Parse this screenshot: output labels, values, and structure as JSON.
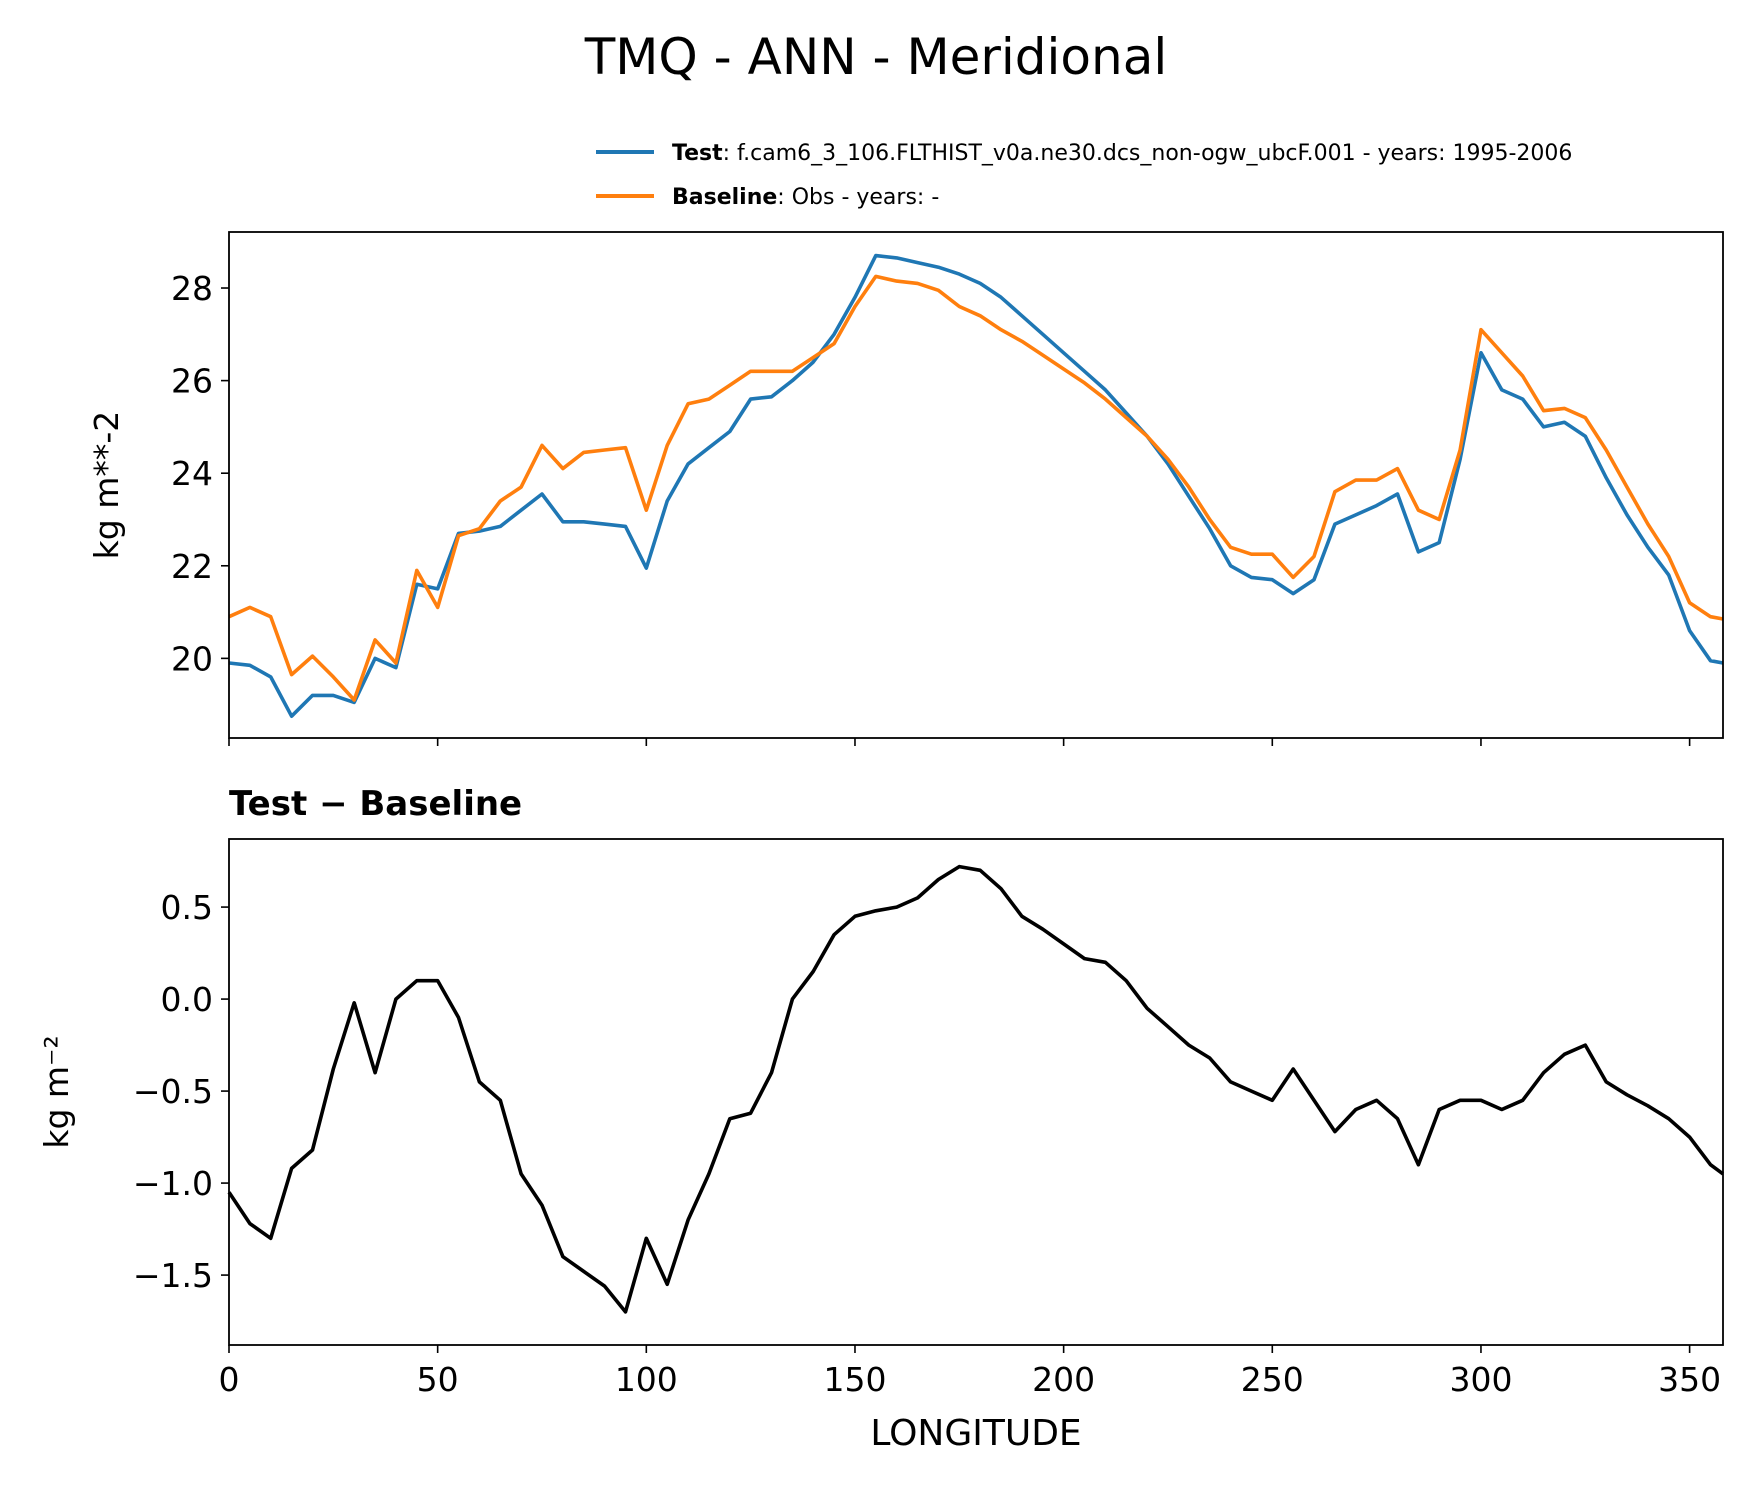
{
  "title": "TMQ - ANN - Meridional",
  "chart_data": [
    {
      "type": "line",
      "ylabel": "kg m**-2",
      "x": [
        0,
        5,
        10,
        15,
        20,
        25,
        30,
        35,
        40,
        45,
        50,
        55,
        60,
        65,
        70,
        75,
        80,
        85,
        90,
        95,
        100,
        105,
        110,
        115,
        120,
        125,
        130,
        135,
        140,
        145,
        150,
        155,
        160,
        165,
        170,
        175,
        180,
        185,
        190,
        195,
        200,
        205,
        210,
        215,
        220,
        225,
        230,
        235,
        240,
        245,
        250,
        255,
        260,
        265,
        270,
        275,
        280,
        285,
        290,
        295,
        300,
        305,
        310,
        315,
        320,
        325,
        330,
        335,
        340,
        345,
        350,
        355,
        358
      ],
      "series": [
        {
          "name": "Test",
          "description": ": f.cam6_3_106.FLTHIST_v0a.ne30.dcs_non-ogw_ubcF.001 - years: 1995-2006",
          "color": "#1f77b4",
          "values": [
            19.9,
            19.85,
            19.6,
            18.75,
            19.2,
            19.2,
            19.05,
            20.0,
            19.8,
            21.6,
            21.5,
            22.7,
            22.75,
            22.85,
            23.2,
            23.55,
            22.95,
            22.95,
            22.9,
            22.85,
            21.95,
            23.4,
            24.2,
            24.55,
            24.9,
            25.6,
            25.65,
            26.0,
            26.4,
            27.0,
            27.8,
            28.7,
            28.65,
            28.55,
            28.45,
            28.3,
            28.1,
            27.8,
            27.4,
            27.0,
            26.6,
            26.2,
            25.8,
            25.3,
            24.8,
            24.2,
            23.5,
            22.8,
            22.0,
            21.75,
            21.7,
            21.4,
            21.7,
            22.9,
            23.1,
            23.3,
            23.55,
            22.3,
            22.5,
            24.3,
            26.6,
            25.8,
            25.6,
            25.0,
            25.1,
            24.8,
            23.9,
            23.1,
            22.4,
            21.8,
            20.6,
            19.95,
            19.9
          ]
        },
        {
          "name": "Baseline",
          "description": ": Obs - years: -",
          "color": "#ff7f0e",
          "values": [
            20.9,
            21.1,
            20.9,
            19.65,
            20.05,
            19.6,
            19.1,
            20.4,
            19.9,
            21.9,
            21.1,
            22.65,
            22.8,
            23.4,
            23.7,
            24.6,
            24.1,
            24.45,
            24.5,
            24.55,
            23.2,
            24.6,
            25.5,
            25.6,
            25.9,
            26.2,
            26.2,
            26.2,
            26.5,
            26.8,
            27.6,
            28.25,
            28.15,
            28.1,
            27.95,
            27.6,
            27.4,
            27.1,
            26.85,
            26.55,
            26.25,
            25.95,
            25.6,
            25.2,
            24.8,
            24.3,
            23.7,
            23.0,
            22.4,
            22.25,
            22.25,
            21.75,
            22.2,
            23.6,
            23.85,
            23.85,
            24.1,
            23.2,
            23.0,
            24.5,
            27.1,
            26.6,
            26.1,
            25.35,
            25.4,
            25.2,
            24.5,
            23.7,
            22.9,
            22.2,
            21.2,
            20.9,
            20.85
          ]
        }
      ],
      "xlim": [
        0,
        358
      ],
      "xticks": [
        0,
        50,
        100,
        150,
        200,
        250,
        300,
        350
      ],
      "ylim": [
        18.28,
        29.21
      ],
      "yticks": [
        20,
        22,
        24,
        26,
        28
      ]
    },
    {
      "type": "line",
      "title": "Test − Baseline",
      "ylabel": "kg m⁻²",
      "xlabel": "LONGITUDE",
      "x": [
        0,
        5,
        10,
        15,
        20,
        25,
        30,
        35,
        40,
        45,
        50,
        55,
        60,
        65,
        70,
        75,
        80,
        85,
        90,
        95,
        100,
        105,
        110,
        115,
        120,
        125,
        130,
        135,
        140,
        145,
        150,
        155,
        160,
        165,
        170,
        175,
        180,
        185,
        190,
        195,
        200,
        205,
        210,
        215,
        220,
        225,
        230,
        235,
        240,
        245,
        250,
        255,
        260,
        265,
        270,
        275,
        280,
        285,
        290,
        295,
        300,
        305,
        310,
        315,
        320,
        325,
        330,
        335,
        340,
        345,
        350,
        355,
        358
      ],
      "series": [
        {
          "color": "#000000",
          "values": [
            -1.05,
            -1.22,
            -1.3,
            -0.92,
            -0.82,
            -0.38,
            -0.02,
            -0.4,
            0.0,
            0.1,
            0.1,
            -0.1,
            -0.45,
            -0.55,
            -0.95,
            -1.12,
            -1.4,
            -1.48,
            -1.56,
            -1.7,
            -1.3,
            -1.55,
            -1.2,
            -0.95,
            -0.65,
            -0.62,
            -0.4,
            0.0,
            0.15,
            0.35,
            0.45,
            0.48,
            0.5,
            0.55,
            0.65,
            0.72,
            0.7,
            0.6,
            0.45,
            0.38,
            0.3,
            0.22,
            0.2,
            0.1,
            -0.05,
            -0.15,
            -0.25,
            -0.32,
            -0.45,
            -0.5,
            -0.55,
            -0.38,
            -0.55,
            -0.72,
            -0.6,
            -0.55,
            -0.65,
            -0.9,
            -0.6,
            -0.55,
            -0.55,
            -0.6,
            -0.55,
            -0.4,
            -0.3,
            -0.25,
            -0.45,
            -0.52,
            -0.58,
            -0.65,
            -0.75,
            -0.9,
            -0.95
          ]
        }
      ],
      "xlim": [
        0,
        358
      ],
      "xticks": [
        0,
        50,
        100,
        150,
        200,
        250,
        300,
        350
      ],
      "ylim": [
        -1.88,
        0.87
      ],
      "yticks": [
        {
          "value": -1.5,
          "label": "−1.5"
        },
        {
          "value": -1.0,
          "label": "−1.0"
        },
        {
          "value": -0.5,
          "label": "−0.5"
        },
        {
          "value": 0,
          "label": "0.0"
        },
        0.5
      ]
    }
  ]
}
